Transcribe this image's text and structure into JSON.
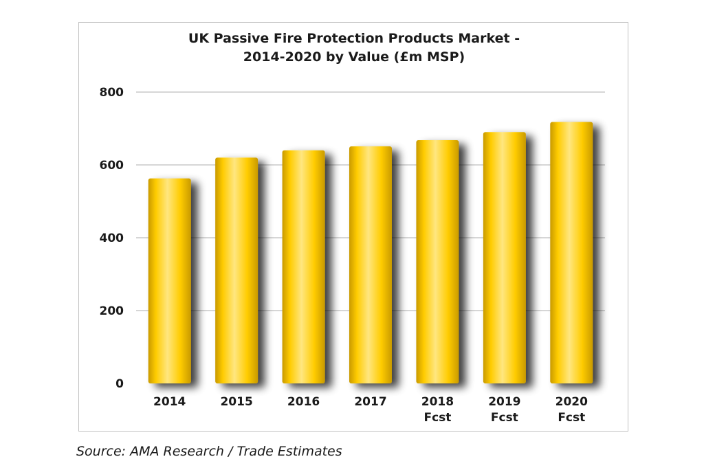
{
  "chart_data": {
    "type": "bar",
    "title": [
      "UK Passive Fire Protection Products Market -",
      "2014-2020 by Value (£m MSP)"
    ],
    "categories": [
      [
        "2014"
      ],
      [
        "2015"
      ],
      [
        "2016"
      ],
      [
        "2017"
      ],
      [
        "2018",
        "Fcst"
      ],
      [
        "2019",
        "Fcst"
      ],
      [
        "2020",
        "Fcst"
      ]
    ],
    "values": [
      563,
      620,
      640,
      651,
      668,
      690,
      718
    ],
    "ylim": [
      0,
      800
    ],
    "yticks": [
      0,
      200,
      400,
      600,
      800
    ],
    "grid": true,
    "legend": "none",
    "colors": {
      "bar": "#ffcc00",
      "bar_highlight": "#ffe680",
      "bar_dark": "#c99a00",
      "shadow": "#6e6e6e",
      "grid": "#c8c8c8"
    }
  },
  "source": "Source: AMA Research / Trade Estimates"
}
